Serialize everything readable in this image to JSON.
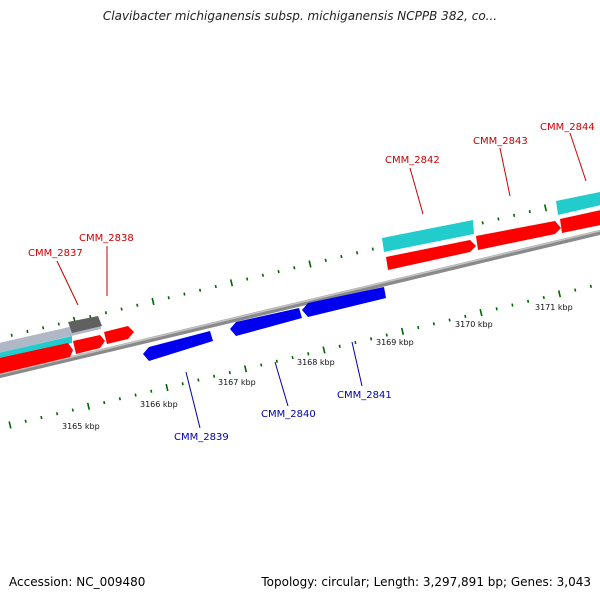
{
  "title": "Clavibacter michiganensis subsp. michiganensis NCPPB 382, co...",
  "footer": {
    "accession": "Accession: NC_009480",
    "summary": "Topology: circular; Length: 3,297,891 bp; Genes: 3,043"
  },
  "colors": {
    "forward_gene": "#ff0000",
    "reverse_gene": "#0000ee",
    "rna_cyan": "#22cccc",
    "grey_feature": "#888888",
    "forward_label": "#cc0000",
    "reverse_label": "#0000aa",
    "tick": "#006600"
  },
  "kbp_ticks": [
    {
      "label": "3165 kbp"
    },
    {
      "label": "3166 kbp"
    },
    {
      "label": "3167 kbp"
    },
    {
      "label": "3168 kbp"
    },
    {
      "label": "3169 kbp"
    },
    {
      "label": "3170 kbp"
    },
    {
      "label": "3171 kbp"
    }
  ],
  "gene_labels": [
    {
      "name": "CMM_2837",
      "strand": "forward"
    },
    {
      "name": "CMM_2838",
      "strand": "forward"
    },
    {
      "name": "CMM_2839",
      "strand": "reverse"
    },
    {
      "name": "CMM_2840",
      "strand": "reverse"
    },
    {
      "name": "CMM_2841",
      "strand": "reverse"
    },
    {
      "name": "CMM_2842",
      "strand": "forward"
    },
    {
      "name": "CMM_2843",
      "strand": "forward"
    },
    {
      "name": "CMM_2844",
      "strand": "forward"
    }
  ]
}
